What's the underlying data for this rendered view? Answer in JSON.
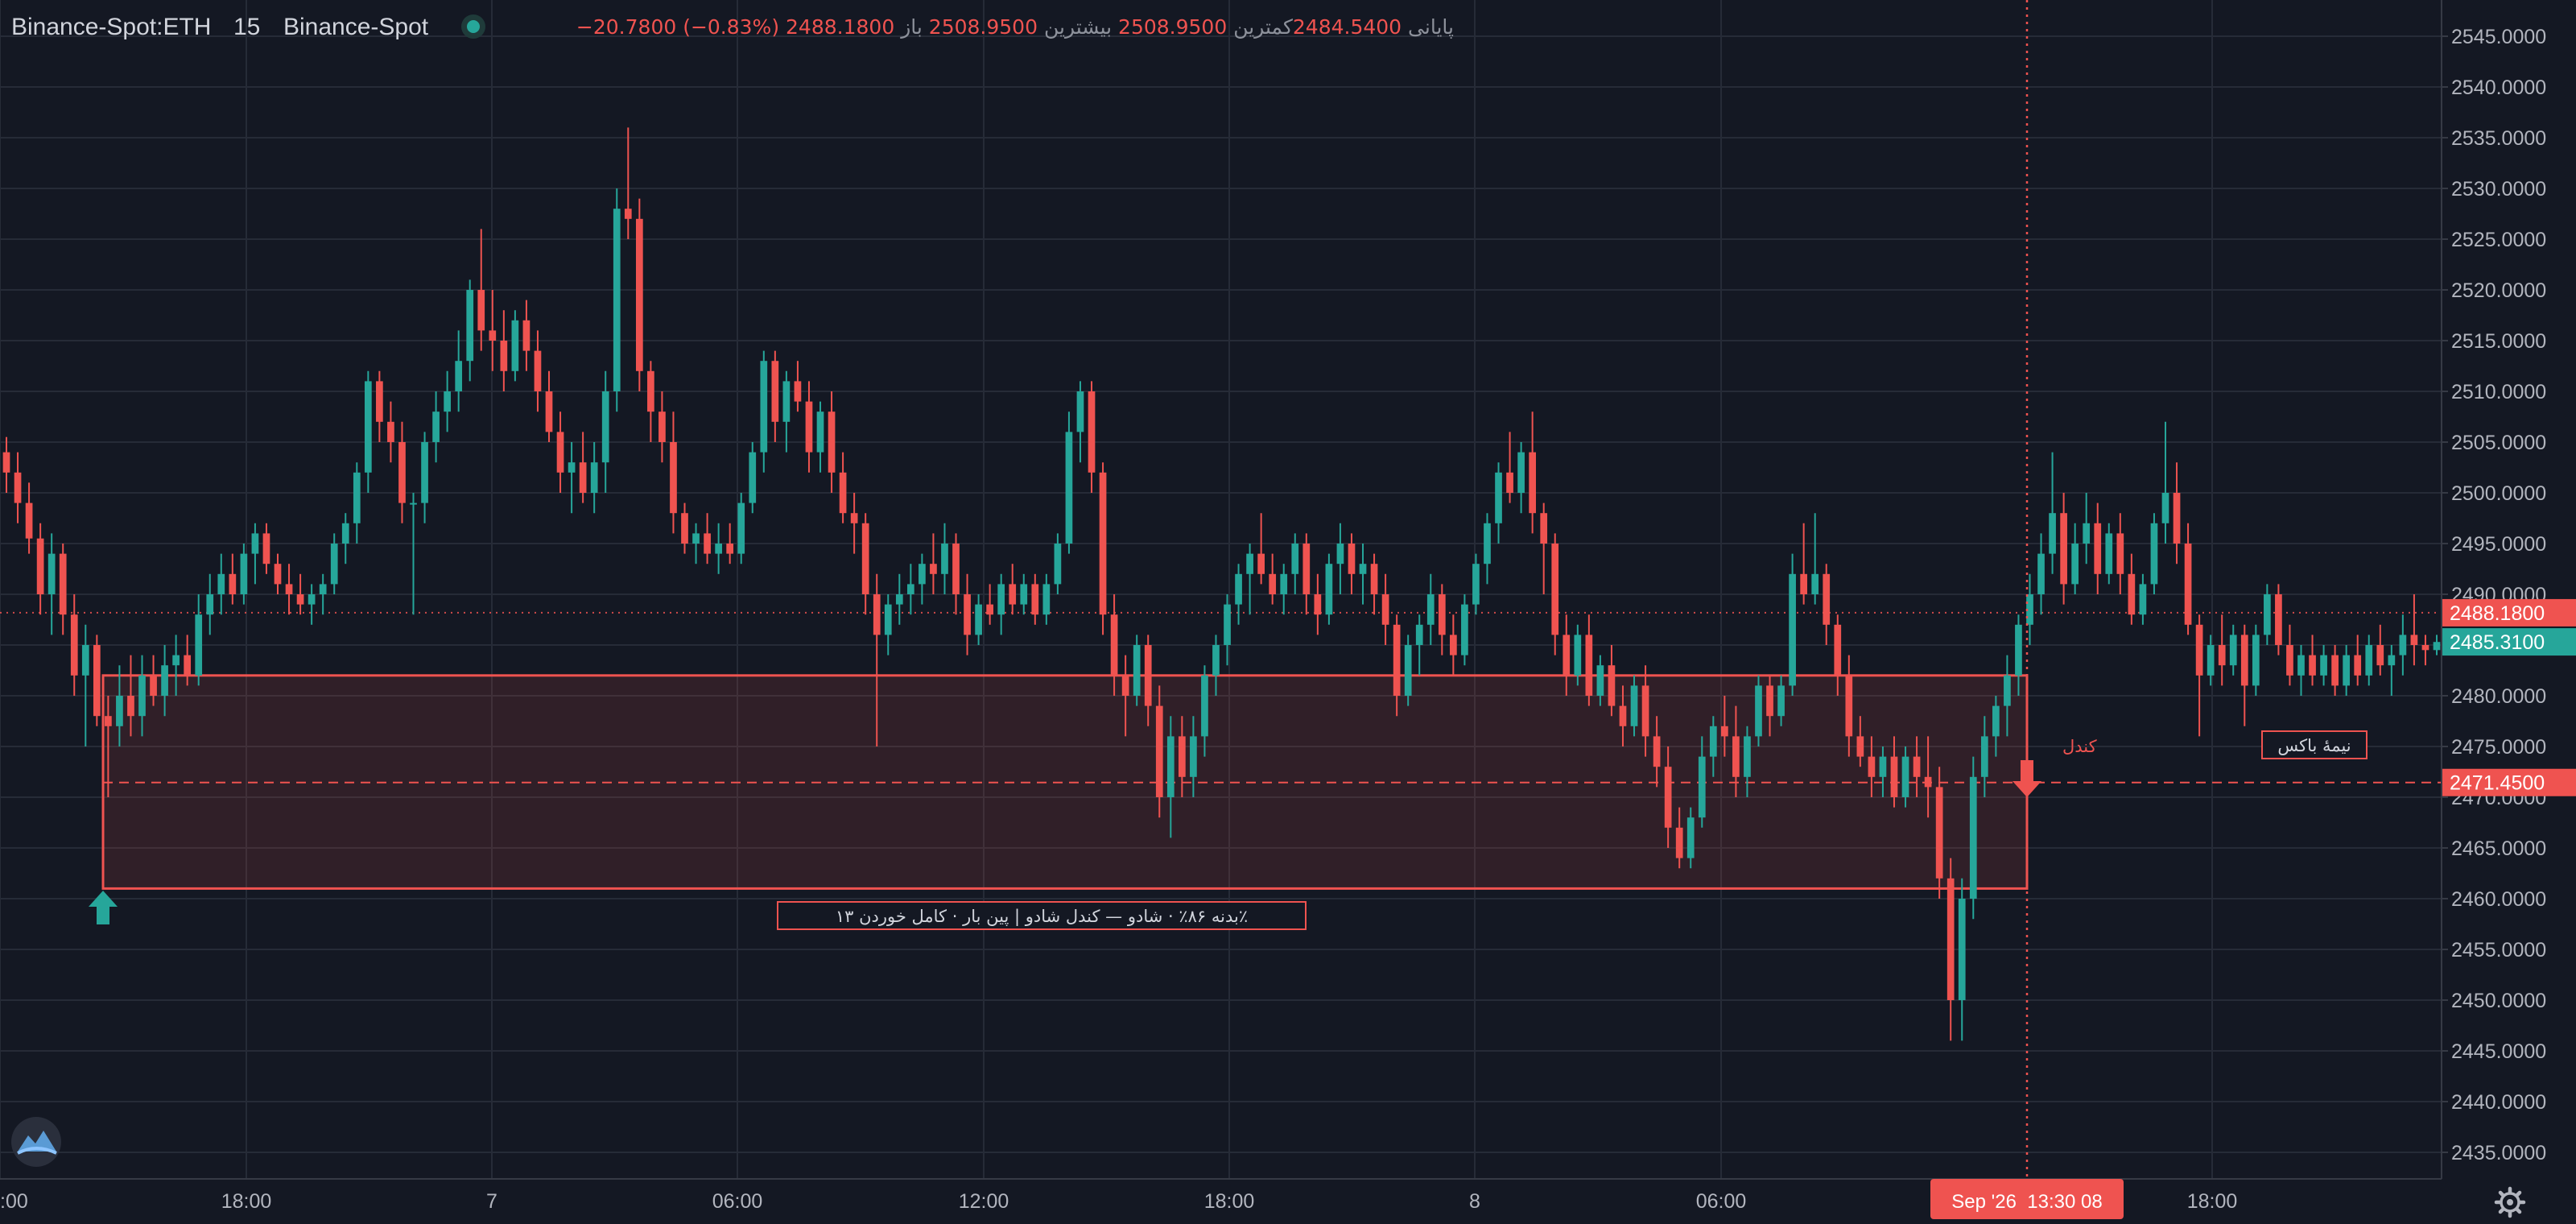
{
  "colors": {
    "background": "#141823",
    "grid": "#262b37",
    "bullish": "#26a69a",
    "bearish": "#ef5350",
    "text": "#d1d4dc",
    "axis_text": "#b2b5be",
    "zone_fill": "rgba(239,83,80,0.13)",
    "zone_border": "#ef5350"
  },
  "header": {
    "symbol": "Binance-Spot:ETH",
    "interval": "15",
    "exchange": "Binance-Spot",
    "open_label": "باز",
    "open": "2508.9500",
    "high_label": "بیشترین",
    "high": "2508.9500",
    "low_label": "کمترین",
    "low": "2484.5400",
    "close_label": "پایانی",
    "close": "2488.1800",
    "change": "−20.7800 (−0.83%)"
  },
  "price_axis": {
    "ticks": [
      "2545.0000",
      "2540.0000",
      "2535.0000",
      "2530.0000",
      "2525.0000",
      "2520.0000",
      "2515.0000",
      "2510.0000",
      "2505.0000",
      "2500.0000",
      "2495.0000",
      "2490.0000",
      "2485.0000",
      "2480.0000",
      "2475.0000",
      "2470.0000",
      "2465.0000",
      "2460.0000",
      "2455.0000",
      "2450.0000",
      "2445.0000",
      "2440.0000",
      "2435.0000"
    ],
    "last_price_label": "2488.1800",
    "second_label": "2485.3100",
    "zone_mid_label": "2471.4500"
  },
  "time_axis": {
    "labels": [
      ":00",
      "18:00",
      "7",
      "06:00",
      "12:00",
      "18:00",
      "8",
      "06:00",
      "18:00"
    ],
    "crosshair_label": "Sep '26  13:30 08"
  },
  "annotations": {
    "zone_label": "۱۳ بدنه ۸۶٪ · شادو — کندل شادو | پین بار · کامل خوردن٪",
    "half_box_label": "نیمهٔ باکس",
    "candle_label": "کندل"
  },
  "icons": {
    "logo": "cloud-logo-icon",
    "settings": "gear-icon",
    "status": "status-dot-icon",
    "zone_start": "arrow-up-icon",
    "zone_end": "arrow-down-icon"
  },
  "chart_data": {
    "type": "candlestick",
    "symbol": "Binance-Spot:ETH",
    "interval": "15",
    "x_labels": [
      ":00",
      "18:00",
      "7",
      "06:00",
      "12:00",
      "18:00",
      "8",
      "06:00",
      "18:00"
    ],
    "ylim": [
      2432,
      2547
    ],
    "y_ticks": [
      2545,
      2540,
      2535,
      2530,
      2525,
      2520,
      2515,
      2510,
      2505,
      2500,
      2495,
      2490,
      2485,
      2480,
      2475,
      2470,
      2465,
      2460,
      2455,
      2450,
      2445,
      2440,
      2435
    ],
    "crosshair_label": "Sep '26  13:30 08",
    "grid": true,
    "last_price": 2488.18,
    "horizontal_lines": [
      2488.18,
      2471.45
    ],
    "zone": {
      "top": 2482.0,
      "bottom": 2461.0,
      "mid": 2471.45
    },
    "ohlc": [
      [
        2504.0,
        2505.5,
        2500.0,
        2502.0
      ],
      [
        2502.0,
        2504.0,
        2497.0,
        2499.0
      ],
      [
        2499.0,
        2501.0,
        2494.0,
        2495.5
      ],
      [
        2495.5,
        2497.0,
        2488.0,
        2490.0
      ],
      [
        2490.0,
        2496.0,
        2486.0,
        2494.0
      ],
      [
        2494.0,
        2495.0,
        2486.0,
        2488.0
      ],
      [
        2488.0,
        2490.0,
        2480.0,
        2482.0
      ],
      [
        2482.0,
        2487.0,
        2475.0,
        2485.0
      ],
      [
        2485.0,
        2486.0,
        2477.0,
        2478.0
      ],
      [
        2478.0,
        2480.0,
        2470.0,
        2477.0
      ],
      [
        2477.0,
        2483.0,
        2475.0,
        2480.0
      ],
      [
        2480.0,
        2484.0,
        2476.0,
        2478.0
      ],
      [
        2478.0,
        2484.0,
        2476.0,
        2482.0
      ],
      [
        2482.0,
        2484.0,
        2479.0,
        2480.0
      ],
      [
        2480.0,
        2485.0,
        2478.0,
        2483.0
      ],
      [
        2483.0,
        2486.0,
        2480.0,
        2484.0
      ],
      [
        2484.0,
        2486.0,
        2481.0,
        2482.0
      ],
      [
        2482.0,
        2490.0,
        2481.0,
        2488.0
      ],
      [
        2488.0,
        2492.0,
        2486.0,
        2490.0
      ],
      [
        2490.0,
        2494.0,
        2488.0,
        2492.0
      ],
      [
        2492.0,
        2494.0,
        2489.0,
        2490.0
      ],
      [
        2490.0,
        2495.0,
        2489.0,
        2494.0
      ],
      [
        2494.0,
        2497.0,
        2491.0,
        2496.0
      ],
      [
        2496.0,
        2497.0,
        2492.0,
        2493.0
      ],
      [
        2493.0,
        2494.0,
        2490.0,
        2491.0
      ],
      [
        2491.0,
        2493.0,
        2488.0,
        2490.0
      ],
      [
        2490.0,
        2492.0,
        2488.0,
        2489.0
      ],
      [
        2489.0,
        2491.0,
        2487.0,
        2490.0
      ],
      [
        2490.0,
        2492.0,
        2488.0,
        2491.0
      ],
      [
        2491.0,
        2496.0,
        2490.0,
        2495.0
      ],
      [
        2495.0,
        2498.0,
        2493.0,
        2497.0
      ],
      [
        2497.0,
        2503.0,
        2495.0,
        2502.0
      ],
      [
        2502.0,
        2512.0,
        2500.0,
        2511.0
      ],
      [
        2511.0,
        2512.0,
        2505.0,
        2507.0
      ],
      [
        2507.0,
        2509.0,
        2503.0,
        2505.0
      ],
      [
        2505.0,
        2507.0,
        2497.0,
        2499.0
      ],
      [
        2499.0,
        2500.0,
        2488.0,
        2499.0
      ],
      [
        2499.0,
        2506.0,
        2497.0,
        2505.0
      ],
      [
        2505.0,
        2510.0,
        2503.0,
        2508.0
      ],
      [
        2508.0,
        2512.0,
        2506.0,
        2510.0
      ],
      [
        2510.0,
        2516.0,
        2508.0,
        2513.0
      ],
      [
        2513.0,
        2521.0,
        2511.0,
        2520.0
      ],
      [
        2520.0,
        2526.0,
        2514.0,
        2516.0
      ],
      [
        2516.0,
        2520.0,
        2512.0,
        2515.0
      ],
      [
        2515.0,
        2518.0,
        2510.0,
        2512.0
      ],
      [
        2512.0,
        2518.0,
        2511.0,
        2517.0
      ],
      [
        2517.0,
        2519.0,
        2512.0,
        2514.0
      ],
      [
        2514.0,
        2516.0,
        2508.0,
        2510.0
      ],
      [
        2510.0,
        2512.0,
        2505.0,
        2506.0
      ],
      [
        2506.0,
        2508.0,
        2500.0,
        2502.0
      ],
      [
        2502.0,
        2505.0,
        2498.0,
        2503.0
      ],
      [
        2503.0,
        2506.0,
        2499.0,
        2500.0
      ],
      [
        2500.0,
        2505.0,
        2498.0,
        2503.0
      ],
      [
        2503.0,
        2512.0,
        2500.0,
        2510.0
      ],
      [
        2510.0,
        2530.0,
        2508.0,
        2528.0
      ],
      [
        2528.0,
        2536.0,
        2525.0,
        2527.0
      ],
      [
        2527.0,
        2529.0,
        2510.0,
        2512.0
      ],
      [
        2512.0,
        2513.0,
        2505.0,
        2508.0
      ],
      [
        2508.0,
        2510.0,
        2503.0,
        2505.0
      ],
      [
        2505.0,
        2508.0,
        2496.0,
        2498.0
      ],
      [
        2498.0,
        2499.0,
        2494.0,
        2495.0
      ],
      [
        2495.0,
        2497.0,
        2493.0,
        2496.0
      ],
      [
        2496.0,
        2498.0,
        2493.0,
        2494.0
      ],
      [
        2494.0,
        2497.0,
        2492.0,
        2495.0
      ],
      [
        2495.0,
        2497.0,
        2493.0,
        2494.0
      ],
      [
        2494.0,
        2500.0,
        2493.0,
        2499.0
      ],
      [
        2499.0,
        2505.0,
        2498.0,
        2504.0
      ],
      [
        2504.0,
        2514.0,
        2502.0,
        2513.0
      ],
      [
        2513.0,
        2514.0,
        2505.0,
        2507.0
      ],
      [
        2507.0,
        2512.0,
        2504.0,
        2511.0
      ],
      [
        2511.0,
        2513.0,
        2508.0,
        2509.0
      ],
      [
        2509.0,
        2511.0,
        2502.0,
        2504.0
      ],
      [
        2504.0,
        2509.0,
        2502.0,
        2508.0
      ],
      [
        2508.0,
        2510.0,
        2500.0,
        2502.0
      ],
      [
        2502.0,
        2504.0,
        2497.0,
        2498.0
      ],
      [
        2498.0,
        2500.0,
        2494.0,
        2497.0
      ],
      [
        2497.0,
        2498.0,
        2488.0,
        2490.0
      ],
      [
        2490.0,
        2492.0,
        2475.0,
        2486.0
      ],
      [
        2486.0,
        2490.0,
        2484.0,
        2489.0
      ],
      [
        2489.0,
        2492.0,
        2487.0,
        2490.0
      ],
      [
        2490.0,
        2493.0,
        2488.0,
        2491.0
      ],
      [
        2491.0,
        2494.0,
        2489.0,
        2493.0
      ],
      [
        2493.0,
        2496.0,
        2490.0,
        2492.0
      ],
      [
        2492.0,
        2497.0,
        2490.0,
        2495.0
      ],
      [
        2495.0,
        2496.0,
        2488.0,
        2490.0
      ],
      [
        2490.0,
        2492.0,
        2484.0,
        2486.0
      ],
      [
        2486.0,
        2490.0,
        2485.0,
        2489.0
      ],
      [
        2489.0,
        2491.0,
        2487.0,
        2488.0
      ],
      [
        2488.0,
        2492.0,
        2486.0,
        2491.0
      ],
      [
        2491.0,
        2493.0,
        2488.0,
        2489.0
      ],
      [
        2489.0,
        2492.0,
        2488.0,
        2491.0
      ],
      [
        2491.0,
        2492.0,
        2487.0,
        2488.0
      ],
      [
        2488.0,
        2492.0,
        2487.0,
        2491.0
      ],
      [
        2491.0,
        2496.0,
        2490.0,
        2495.0
      ],
      [
        2495.0,
        2508.0,
        2494.0,
        2506.0
      ],
      [
        2506.0,
        2511.0,
        2503.0,
        2510.0
      ],
      [
        2510.0,
        2511.0,
        2500.0,
        2502.0
      ],
      [
        2502.0,
        2503.0,
        2486.0,
        2488.0
      ],
      [
        2488.0,
        2490.0,
        2480.0,
        2482.0
      ],
      [
        2482.0,
        2484.0,
        2476.0,
        2480.0
      ],
      [
        2480.0,
        2486.0,
        2479.0,
        2485.0
      ],
      [
        2485.0,
        2486.0,
        2477.0,
        2479.0
      ],
      [
        2479.0,
        2481.0,
        2468.0,
        2470.0
      ],
      [
        2470.0,
        2478.0,
        2466.0,
        2476.0
      ],
      [
        2476.0,
        2478.0,
        2470.0,
        2472.0
      ],
      [
        2472.0,
        2478.0,
        2470.0,
        2476.0
      ],
      [
        2476.0,
        2483.0,
        2474.0,
        2482.0
      ],
      [
        2482.0,
        2486.0,
        2480.0,
        2485.0
      ],
      [
        2485.0,
        2490.0,
        2483.0,
        2489.0
      ],
      [
        2489.0,
        2493.0,
        2487.0,
        2492.0
      ],
      [
        2492.0,
        2495.0,
        2488.0,
        2494.0
      ],
      [
        2494.0,
        2498.0,
        2491.0,
        2492.0
      ],
      [
        2492.0,
        2494.0,
        2489.0,
        2490.0
      ],
      [
        2490.0,
        2493.0,
        2488.0,
        2492.0
      ],
      [
        2492.0,
        2496.0,
        2490.0,
        2495.0
      ],
      [
        2495.0,
        2496.0,
        2488.0,
        2490.0
      ],
      [
        2490.0,
        2492.0,
        2486.0,
        2488.0
      ],
      [
        2488.0,
        2494.0,
        2487.0,
        2493.0
      ],
      [
        2493.0,
        2497.0,
        2490.0,
        2495.0
      ],
      [
        2495.0,
        2496.0,
        2490.0,
        2492.0
      ],
      [
        2492.0,
        2495.0,
        2489.0,
        2493.0
      ],
      [
        2493.0,
        2494.0,
        2488.0,
        2490.0
      ],
      [
        2490.0,
        2492.0,
        2485.0,
        2487.0
      ],
      [
        2487.0,
        2488.0,
        2478.0,
        2480.0
      ],
      [
        2480.0,
        2486.0,
        2479.0,
        2485.0
      ],
      [
        2485.0,
        2488.0,
        2482.0,
        2487.0
      ],
      [
        2487.0,
        2492.0,
        2485.0,
        2490.0
      ],
      [
        2490.0,
        2491.0,
        2484.0,
        2486.0
      ],
      [
        2486.0,
        2488.0,
        2482.0,
        2484.0
      ],
      [
        2484.0,
        2490.0,
        2483.0,
        2489.0
      ],
      [
        2489.0,
        2494.0,
        2488.0,
        2493.0
      ],
      [
        2493.0,
        2498.0,
        2491.0,
        2497.0
      ],
      [
        2497.0,
        2503.0,
        2495.0,
        2502.0
      ],
      [
        2502.0,
        2506.0,
        2499.0,
        2500.0
      ],
      [
        2500.0,
        2505.0,
        2498.0,
        2504.0
      ],
      [
        2504.0,
        2508.0,
        2496.0,
        2498.0
      ],
      [
        2498.0,
        2499.0,
        2490.0,
        2495.0
      ],
      [
        2495.0,
        2496.0,
        2484.0,
        2486.0
      ],
      [
        2486.0,
        2488.0,
        2480.0,
        2482.0
      ],
      [
        2482.0,
        2487.0,
        2481.0,
        2486.0
      ],
      [
        2486.0,
        2488.0,
        2479.0,
        2480.0
      ],
      [
        2480.0,
        2484.0,
        2479.0,
        2483.0
      ],
      [
        2483.0,
        2485.0,
        2478.0,
        2479.0
      ],
      [
        2479.0,
        2481.0,
        2475.0,
        2477.0
      ],
      [
        2477.0,
        2482.0,
        2476.0,
        2481.0
      ],
      [
        2481.0,
        2483.0,
        2474.0,
        2476.0
      ],
      [
        2476.0,
        2478.0,
        2471.0,
        2473.0
      ],
      [
        2473.0,
        2475.0,
        2465.0,
        2467.0
      ],
      [
        2467.0,
        2469.0,
        2463.0,
        2464.0
      ],
      [
        2464.0,
        2469.0,
        2463.0,
        2468.0
      ],
      [
        2468.0,
        2476.0,
        2467.0,
        2474.0
      ],
      [
        2474.0,
        2478.0,
        2472.0,
        2477.0
      ],
      [
        2477.0,
        2480.0,
        2474.0,
        2476.0
      ],
      [
        2476.0,
        2479.0,
        2470.0,
        2472.0
      ],
      [
        2472.0,
        2477.0,
        2470.0,
        2476.0
      ],
      [
        2476.0,
        2482.0,
        2475.0,
        2481.0
      ],
      [
        2481.0,
        2482.0,
        2476.0,
        2478.0
      ],
      [
        2478.0,
        2482.0,
        2477.0,
        2481.0
      ],
      [
        2481.0,
        2494.0,
        2480.0,
        2492.0
      ],
      [
        2492.0,
        2497.0,
        2489.0,
        2490.0
      ],
      [
        2490.0,
        2498.0,
        2489.0,
        2492.0
      ],
      [
        2492.0,
        2493.0,
        2485.0,
        2487.0
      ],
      [
        2487.0,
        2488.0,
        2480.0,
        2482.0
      ],
      [
        2482.0,
        2484.0,
        2474.0,
        2476.0
      ],
      [
        2476.0,
        2478.0,
        2473.0,
        2474.0
      ],
      [
        2474.0,
        2476.0,
        2470.0,
        2472.0
      ],
      [
        2472.0,
        2475.0,
        2470.0,
        2474.0
      ],
      [
        2474.0,
        2476.0,
        2469.0,
        2470.0
      ],
      [
        2470.0,
        2475.0,
        2469.0,
        2474.0
      ],
      [
        2474.0,
        2476.0,
        2470.0,
        2472.0
      ],
      [
        2472.0,
        2476.0,
        2468.0,
        2471.0
      ],
      [
        2471.0,
        2473.0,
        2460.0,
        2462.0
      ],
      [
        2462.0,
        2464.0,
        2446.0,
        2450.0
      ],
      [
        2450.0,
        2462.0,
        2446.0,
        2460.0
      ],
      [
        2460.0,
        2474.0,
        2458.0,
        2472.0
      ],
      [
        2472.0,
        2478.0,
        2470.0,
        2476.0
      ],
      [
        2476.0,
        2480.0,
        2474.0,
        2479.0
      ],
      [
        2479.0,
        2484.0,
        2476.0,
        2482.0
      ],
      [
        2482.0,
        2488.0,
        2480.0,
        2487.0
      ],
      [
        2487.0,
        2492.0,
        2485.0,
        2490.0
      ],
      [
        2490.0,
        2496.0,
        2488.0,
        2494.0
      ],
      [
        2494.0,
        2504.0,
        2492.0,
        2498.0
      ],
      [
        2498.0,
        2500.0,
        2489.0,
        2491.0
      ],
      [
        2491.0,
        2497.0,
        2490.0,
        2495.0
      ],
      [
        2495.0,
        2500.0,
        2493.0,
        2497.0
      ],
      [
        2497.0,
        2499.0,
        2490.0,
        2492.0
      ],
      [
        2492.0,
        2497.0,
        2491.0,
        2496.0
      ],
      [
        2496.0,
        2498.0,
        2490.0,
        2492.0
      ],
      [
        2492.0,
        2494.0,
        2487.0,
        2488.0
      ],
      [
        2488.0,
        2492.0,
        2487.0,
        2491.0
      ],
      [
        2491.0,
        2498.0,
        2490.0,
        2497.0
      ],
      [
        2497.0,
        2507.0,
        2495.0,
        2500.0
      ],
      [
        2500.0,
        2503.0,
        2493.0,
        2495.0
      ],
      [
        2495.0,
        2497.0,
        2486.0,
        2487.0
      ],
      [
        2487.0,
        2488.0,
        2476.0,
        2482.0
      ],
      [
        2482.0,
        2486.0,
        2481.0,
        2485.0
      ],
      [
        2485.0,
        2488.0,
        2481.0,
        2483.0
      ],
      [
        2483.0,
        2487.0,
        2482.0,
        2486.0
      ],
      [
        2486.0,
        2487.0,
        2477.0,
        2481.0
      ],
      [
        2481.0,
        2487.0,
        2480.0,
        2486.0
      ],
      [
        2486.0,
        2491.0,
        2485.0,
        2490.0
      ],
      [
        2490.0,
        2491.0,
        2484.0,
        2485.0
      ],
      [
        2485.0,
        2487.0,
        2481.0,
        2482.0
      ],
      [
        2482.0,
        2485.0,
        2480.0,
        2484.0
      ],
      [
        2484.0,
        2486.0,
        2481.0,
        2482.0
      ],
      [
        2482.0,
        2485.0,
        2481.0,
        2484.0
      ],
      [
        2484.0,
        2485.0,
        2480.0,
        2481.0
      ],
      [
        2481.0,
        2485.0,
        2480.0,
        2484.0
      ],
      [
        2484.0,
        2486.0,
        2481.0,
        2482.0
      ],
      [
        2482.0,
        2486.0,
        2481.0,
        2485.0
      ],
      [
        2485.0,
        2487.0,
        2482.0,
        2483.0
      ],
      [
        2483.0,
        2485.0,
        2480.0,
        2484.0
      ],
      [
        2484.0,
        2488.0,
        2482.0,
        2486.0
      ],
      [
        2486.0,
        2490.0,
        2483.0,
        2485.0
      ],
      [
        2485.0,
        2486.0,
        2483.0,
        2484.5
      ],
      [
        2484.5,
        2486.0,
        2484.0,
        2485.3
      ]
    ]
  }
}
